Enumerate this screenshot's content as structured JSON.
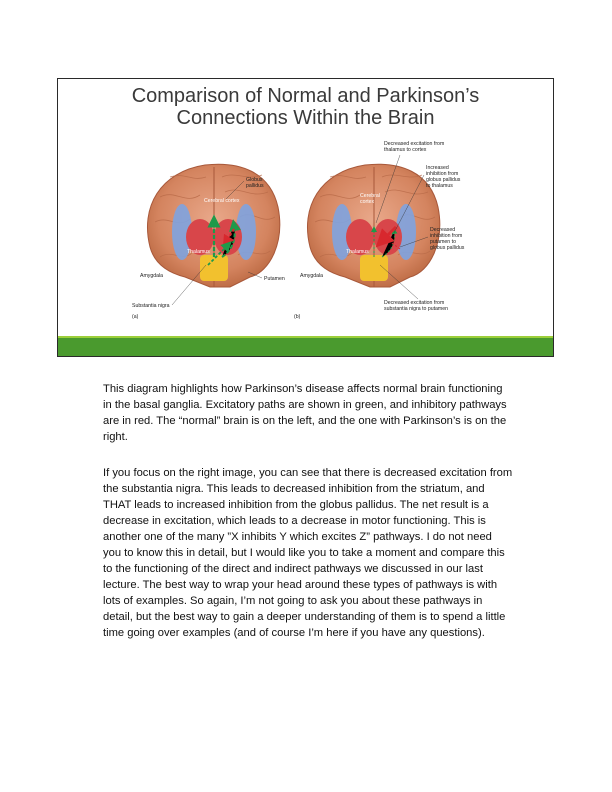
{
  "slide": {
    "title_line1": "Comparison of Normal and Parkinson’s",
    "title_line2": "Connections Within the Brain",
    "figure": {
      "left": {
        "cerebral_cortex": "Cerebral cortex",
        "globus_pallidus": "Globus\npallidus",
        "thalamus": "Thalamus",
        "amygdala": "Amygdala",
        "putamen": "Putamen",
        "substantia_nigra": "Substantia nigra",
        "panel": "(a)"
      },
      "right": {
        "cerebral_cortex": "Cerebral\ncortex",
        "thalamus": "Thalamus",
        "amygdala": "Amygdala",
        "note_thalamus_cortex": "Decreased excitation from\nthalamus to cortex",
        "note_globus_thalamus": "Increased\ninhibition from\nglobus pallidus\nto thalamus",
        "note_putamen_globus": "Decreased\ninhibition from\nputamen to\nglobus pallidus",
        "note_nigra_putamen": "Decreased excitation from\nsubstantia nigra to putamen",
        "panel": "(b)"
      }
    }
  },
  "notes": {
    "paragraph1": "This diagram highlights how Parkinson’s disease affects normal brain functioning in the basal ganglia. Excitatory paths are shown in green, and inhibitory pathways are in red. The “normal” brain is on the left, and the one with Parkinson’s is on the right.",
    "paragraph2": "If you focus on the right image, you can see that there is decreased excitation from the substantia nigra. This leads to decreased inhibition from the striatum, and THAT leads to increased inhibition from the globus pallidus. The net result is a decrease in excitation, which leads to a decrease in motor functioning. This is another one of the many ”X inhibits Y which excites Z” pathways. I do not need you to know this in detail, but I would like you to take a moment and compare this to the functioning of the direct and indirect pathways we discussed in our last lecture. The best way to wrap your head around these types of pathways is with lots of examples. So again, I’m not going to ask you about these pathways in detail, but the best way to gain a deeper understanding of them is to spend a little time going over examples (and of course I’m here if you have any questions)."
  },
  "colors": {
    "excitatory": "#1f9a4a",
    "inhibitory": "#d8282e",
    "footer_bar": "#4a9a2e",
    "brain": "#d88a6a"
  }
}
